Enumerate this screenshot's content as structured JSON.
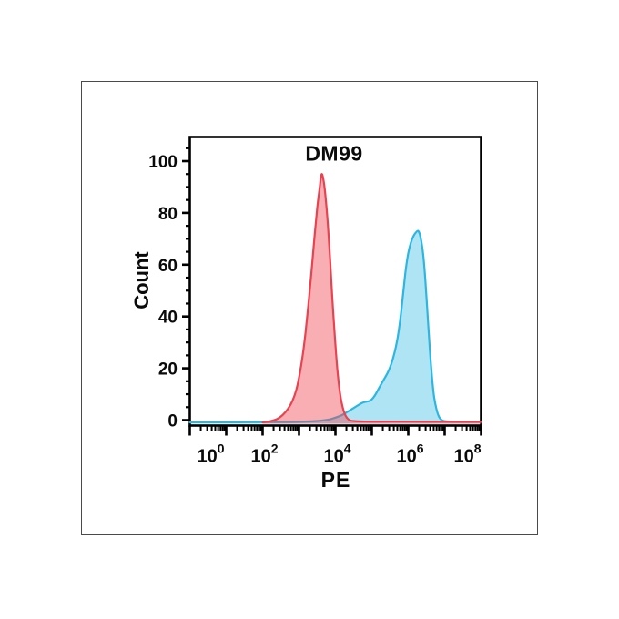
{
  "figure": {
    "background": "#ffffff",
    "frame_border_color": "#4a4a4a"
  },
  "chart_data": {
    "type": "area",
    "subtype": "flow-cytometry-histogram-overlay",
    "title": "DM99",
    "xlabel": "PE",
    "ylabel": "Count",
    "x_scale": "log10",
    "xlim": [
      1,
      100000000
    ],
    "ylim": [
      0,
      109
    ],
    "axis_color": "#000000",
    "grid": "off",
    "legend": "none",
    "y_ticks": [
      0,
      20,
      40,
      60,
      80,
      100
    ],
    "y_tick_labels": [
      "0",
      "20",
      "40",
      "60",
      "80",
      "100"
    ],
    "y_minor_step": 5,
    "x_major_tick_exponents": [
      0,
      1,
      2,
      3,
      4,
      5,
      6,
      7,
      8
    ],
    "x_labeled_exponents": [
      0,
      2,
      4,
      6,
      8
    ],
    "x_tick_labels": [
      {
        "base": "10",
        "exp": "0"
      },
      {
        "base": "10",
        "exp": "2"
      },
      {
        "base": "10",
        "exp": "4"
      },
      {
        "base": "10",
        "exp": "6"
      },
      {
        "base": "10",
        "exp": "8"
      }
    ],
    "series": [
      {
        "name": "cyan-histogram",
        "stroke": "#2db6e0",
        "fill": "rgba(46,183,225,0.38)",
        "peak": {
          "x_log10": 6.28,
          "count": 74
        },
        "points": [
          [
            0,
            0.2
          ],
          [
            0.8,
            0.2
          ],
          [
            1.6,
            0.25
          ],
          [
            2.4,
            0.3
          ],
          [
            3.0,
            0.4
          ],
          [
            3.5,
            0.7
          ],
          [
            3.8,
            1.2
          ],
          [
            4.0,
            2
          ],
          [
            4.15,
            2.8
          ],
          [
            4.3,
            4
          ],
          [
            4.45,
            5.3
          ],
          [
            4.6,
            6.6
          ],
          [
            4.72,
            7.6
          ],
          [
            4.82,
            8.1
          ],
          [
            4.9,
            8.3
          ],
          [
            4.98,
            8.8
          ],
          [
            5.08,
            10.5
          ],
          [
            5.2,
            13.5
          ],
          [
            5.32,
            16.5
          ],
          [
            5.44,
            19.5
          ],
          [
            5.54,
            23
          ],
          [
            5.63,
            27.5
          ],
          [
            5.71,
            33
          ],
          [
            5.79,
            41
          ],
          [
            5.86,
            50
          ],
          [
            5.93,
            59
          ],
          [
            6.0,
            65.5
          ],
          [
            6.07,
            69.5
          ],
          [
            6.14,
            72
          ],
          [
            6.21,
            73.5
          ],
          [
            6.28,
            74
          ],
          [
            6.34,
            71.5
          ],
          [
            6.41,
            65
          ],
          [
            6.47,
            55
          ],
          [
            6.53,
            42
          ],
          [
            6.59,
            29
          ],
          [
            6.65,
            18
          ],
          [
            6.71,
            10
          ],
          [
            6.78,
            5
          ],
          [
            6.85,
            2.2
          ],
          [
            6.93,
            1
          ],
          [
            7.05,
            0.6
          ],
          [
            7.4,
            0.45
          ],
          [
            8,
            0.45
          ]
        ]
      },
      {
        "name": "red-histogram",
        "stroke": "#e84350",
        "fill": "rgba(238,70,82,0.44)",
        "peak": {
          "x_log10": 3.62,
          "count": 96
        },
        "points": [
          [
            2.0,
            0.2
          ],
          [
            2.2,
            0.6
          ],
          [
            2.4,
            1.5
          ],
          [
            2.55,
            3
          ],
          [
            2.7,
            5.5
          ],
          [
            2.82,
            8.5
          ],
          [
            2.93,
            13
          ],
          [
            3.02,
            19
          ],
          [
            3.1,
            26
          ],
          [
            3.18,
            35
          ],
          [
            3.26,
            46
          ],
          [
            3.34,
            58
          ],
          [
            3.42,
            71
          ],
          [
            3.5,
            83
          ],
          [
            3.56,
            90
          ],
          [
            3.62,
            96
          ],
          [
            3.68,
            93
          ],
          [
            3.73,
            87
          ],
          [
            3.79,
            77
          ],
          [
            3.85,
            64
          ],
          [
            3.91,
            49
          ],
          [
            3.98,
            34
          ],
          [
            4.05,
            21
          ],
          [
            4.12,
            12
          ],
          [
            4.19,
            6.5
          ],
          [
            4.27,
            3
          ],
          [
            4.37,
            1.2
          ],
          [
            4.5,
            0.7
          ],
          [
            4.8,
            0.5
          ],
          [
            5.5,
            0.5
          ],
          [
            6.5,
            0.45
          ],
          [
            7.5,
            0.4
          ],
          [
            8,
            0.4
          ]
        ]
      }
    ]
  }
}
